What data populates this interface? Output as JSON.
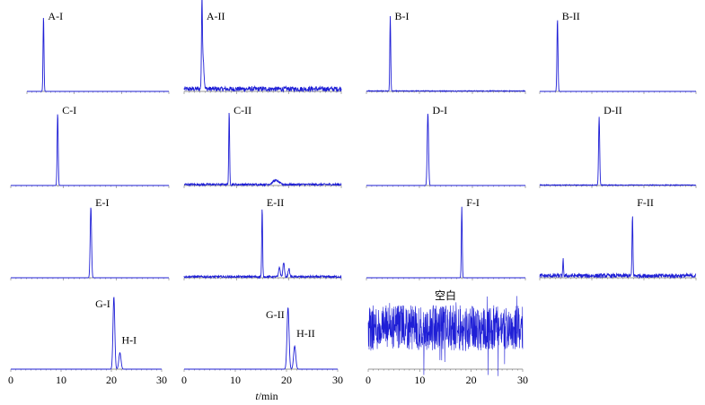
{
  "figure": {
    "xlabel_italic": "t",
    "xlabel_rest": "/min"
  },
  "chart_data": [
    {
      "type": "line",
      "label": "A-I",
      "xlim": [
        0,
        30
      ],
      "x_ticks": [],
      "peaks": [
        {
          "x": 3.5,
          "h": 0.93,
          "w": 0.14
        }
      ],
      "noise": 0.0
    },
    {
      "type": "line",
      "label": "A-II",
      "xlim": [
        0,
        30
      ],
      "x_ticks": [],
      "peaks": [
        {
          "x": 3.4,
          "h": 0.93,
          "w": 0.12
        },
        {
          "x": 3.6,
          "h": 0.4,
          "w": 0.25
        }
      ],
      "noise": 0.06
    },
    {
      "type": "line",
      "label": "B-I",
      "xlim": [
        0,
        30
      ],
      "x_ticks": [],
      "peaks": [
        {
          "x": 4.5,
          "h": 0.93,
          "w": 0.12
        }
      ],
      "noise": 0.01
    },
    {
      "type": "line",
      "label": "B-II",
      "xlim": [
        0,
        30
      ],
      "x_ticks": [],
      "peaks": [
        {
          "x": 3.4,
          "h": 0.9,
          "w": 0.14
        }
      ],
      "noise": 0.0
    },
    {
      "type": "line",
      "label": "C-I",
      "xlim": [
        0,
        30
      ],
      "x_ticks": [],
      "peaks": [
        {
          "x": 8.9,
          "h": 0.9,
          "w": 0.14
        }
      ],
      "noise": 0.0
    },
    {
      "type": "line",
      "label": "C-II",
      "xlim": [
        0,
        30
      ],
      "x_ticks": [],
      "peaks": [
        {
          "x": 8.6,
          "h": 0.9,
          "w": 0.12
        },
        {
          "x": 17.5,
          "h": 0.05,
          "w": 0.8
        }
      ],
      "noise": 0.025
    },
    {
      "type": "line",
      "label": "D-I",
      "xlim": [
        0,
        30
      ],
      "x_ticks": [],
      "peaks": [
        {
          "x": 11.6,
          "h": 0.9,
          "w": 0.18
        }
      ],
      "noise": 0.0
    },
    {
      "type": "line",
      "label": "D-II",
      "xlim": [
        0,
        30
      ],
      "x_ticks": [],
      "peaks": [
        {
          "x": 11.4,
          "h": 0.85,
          "w": 0.15
        }
      ],
      "noise": 0.01
    },
    {
      "type": "line",
      "label": "E-I",
      "xlim": [
        0,
        30
      ],
      "x_ticks": [],
      "peaks": [
        {
          "x": 15.2,
          "h": 0.88,
          "w": 0.18
        }
      ],
      "noise": 0.0
    },
    {
      "type": "line",
      "label": "E-II",
      "xlim": [
        0,
        30
      ],
      "x_ticks": [],
      "peaks": [
        {
          "x": 14.9,
          "h": 0.85,
          "w": 0.12
        },
        {
          "x": 18.2,
          "h": 0.12,
          "w": 0.2
        },
        {
          "x": 19.0,
          "h": 0.18,
          "w": 0.2
        },
        {
          "x": 20.0,
          "h": 0.1,
          "w": 0.2
        }
      ],
      "noise": 0.025
    },
    {
      "type": "line",
      "label": "F-I",
      "xlim": [
        0,
        30
      ],
      "x_ticks": [],
      "peaks": [
        {
          "x": 18.0,
          "h": 0.88,
          "w": 0.12
        }
      ],
      "noise": 0.0
    },
    {
      "type": "line",
      "label": "F-II",
      "xlim": [
        0,
        30
      ],
      "x_ticks": [],
      "peaks": [
        {
          "x": 17.8,
          "h": 0.75,
          "w": 0.12
        },
        {
          "x": 4.5,
          "h": 0.2,
          "w": 0.1
        }
      ],
      "noise": 0.05
    },
    {
      "type": "line",
      "label": "G-I",
      "label2": "H-I",
      "xlim": [
        0,
        30
      ],
      "x_ticks": [
        0,
        10,
        20,
        30
      ],
      "peaks": [
        {
          "x": 20.5,
          "h": 0.88,
          "w": 0.25
        },
        {
          "x": 21.7,
          "h": 0.2,
          "w": 0.3
        }
      ],
      "noise": 0.0
    },
    {
      "type": "line",
      "label": "G-II",
      "label2": "H-II",
      "xlim": [
        0,
        30
      ],
      "x_ticks": [
        0,
        10,
        20,
        30
      ],
      "peaks": [
        {
          "x": 20.3,
          "h": 0.75,
          "w": 0.28
        },
        {
          "x": 21.6,
          "h": 0.28,
          "w": 0.3
        }
      ],
      "noise": 0.0
    },
    {
      "type": "line",
      "label": "空白",
      "xlim": [
        0,
        30
      ],
      "x_ticks": [
        0,
        10,
        20,
        30
      ],
      "peaks": [],
      "noise": 0.55,
      "blank": true
    }
  ]
}
